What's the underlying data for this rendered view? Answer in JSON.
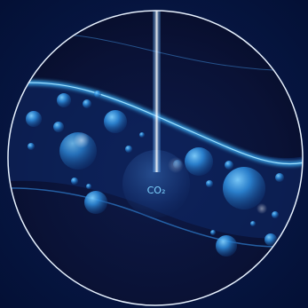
{
  "label": {
    "text": "CO₂"
  },
  "colors": {
    "background": "#071a45",
    "circle_inner": "#0a1236",
    "circle_border": "#e8f2ff",
    "glow": "#3fb8ff",
    "bubble": "#2b8fe0"
  }
}
